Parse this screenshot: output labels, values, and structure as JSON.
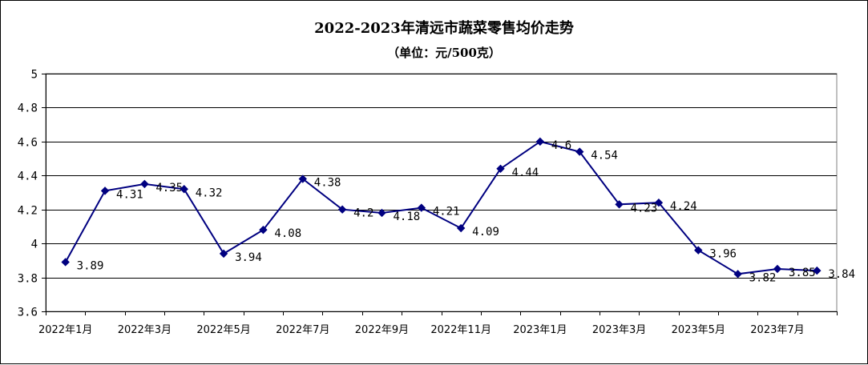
{
  "chart_data": {
    "type": "line",
    "title": "2022-2023年清远市蔬菜零售均价走势",
    "subtitle": "（单位：元/500克）",
    "categories": [
      "2022年1月",
      "2022年2月",
      "2022年3月",
      "2022年4月",
      "2022年5月",
      "2022年6月",
      "2022年7月",
      "2022年8月",
      "2022年9月",
      "2022年10月",
      "2022年11月",
      "2022年12月",
      "2023年1月",
      "2023年2月",
      "2023年3月",
      "2023年4月",
      "2023年5月",
      "2023年6月",
      "2023年7月",
      "2023年8月"
    ],
    "x_tick_labels": [
      "2022年1月",
      "2022年3月",
      "2022年5月",
      "2022年7月",
      "2022年9月",
      "2022年11月",
      "2023年1月",
      "2023年3月",
      "2023年5月",
      "2023年7月"
    ],
    "values": [
      3.89,
      4.31,
      4.35,
      4.32,
      3.94,
      4.08,
      4.38,
      4.2,
      4.18,
      4.21,
      4.09,
      4.44,
      4.6,
      4.54,
      4.23,
      4.24,
      3.96,
      3.82,
      3.85,
      3.84
    ],
    "data_labels": [
      "3.89",
      "4.31",
      "4.35",
      "4.32",
      "3.94",
      "4.08",
      "4.38",
      "4.2",
      "4.18",
      "4.21",
      "4.09",
      "4.44",
      "4.6",
      "4.54",
      "4.23",
      "4.24",
      "3.96",
      "3.82",
      "3.85",
      "3.84"
    ],
    "y_tick_labels": [
      "3.6",
      "3.8",
      "4",
      "4.2",
      "4.4",
      "4.6",
      "4.8",
      "5"
    ],
    "ylim": [
      3.6,
      5
    ],
    "ytick_step": 0.2,
    "grid": true,
    "legend": "none",
    "line_color": "#000080",
    "marker": "diamond"
  }
}
